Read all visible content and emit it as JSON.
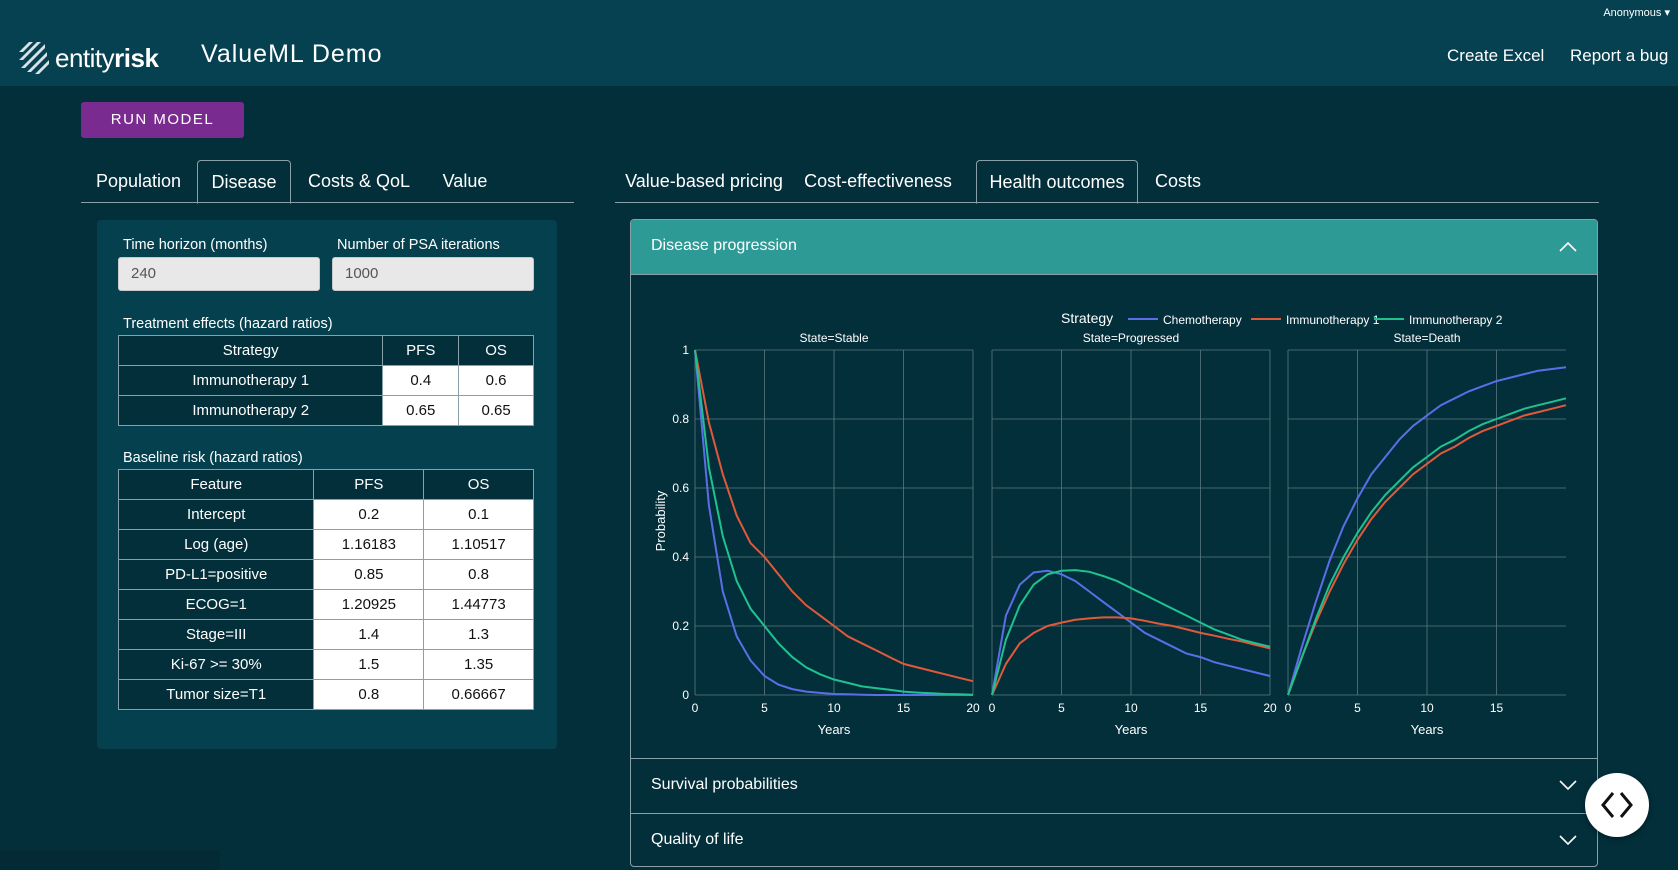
{
  "header": {
    "user": "Anonymous ▾",
    "logo_light": "entity",
    "logo_bold": "risk",
    "app_title": "ValueML Demo",
    "links": [
      "Create Excel",
      "Report a bug"
    ]
  },
  "run_button": "RUN MODEL",
  "left_tabs": [
    {
      "label": "Population",
      "active": false
    },
    {
      "label": "Disease",
      "active": true
    },
    {
      "label": "Costs & QoL",
      "active": false
    },
    {
      "label": "Value",
      "active": false
    }
  ],
  "right_tabs": [
    {
      "label": "Value-based pricing",
      "active": false
    },
    {
      "label": "Cost-effectiveness",
      "active": false
    },
    {
      "label": "Health outcomes",
      "active": true
    },
    {
      "label": "Costs",
      "active": false
    }
  ],
  "settings": {
    "time_horizon_label": "Time horizon (months)",
    "time_horizon_value": "240",
    "psa_label": "Number of PSA iterations",
    "psa_value": "1000"
  },
  "treatment_effects": {
    "title": "Treatment effects (hazard ratios)",
    "headers": [
      "Strategy",
      "PFS",
      "OS"
    ],
    "rows": [
      [
        "Immunotherapy 1",
        "0.4",
        "0.6"
      ],
      [
        "Immunotherapy 2",
        "0.65",
        "0.65"
      ]
    ]
  },
  "baseline_risk": {
    "title": "Baseline risk (hazard ratios)",
    "headers": [
      "Feature",
      "PFS",
      "OS"
    ],
    "rows": [
      [
        "Intercept",
        "0.2",
        "0.1"
      ],
      [
        "Log (age)",
        "1.16183",
        "1.10517"
      ],
      [
        "PD-L1=positive",
        "0.85",
        "0.8"
      ],
      [
        "ECOG=1",
        "1.20925",
        "1.44773"
      ],
      [
        "Stage=III",
        "1.4",
        "1.3"
      ],
      [
        "Ki-67 >= 30%",
        "1.5",
        "1.35"
      ],
      [
        "Tumor size=T1",
        "0.8",
        "0.66667"
      ]
    ]
  },
  "accordion": [
    {
      "title": "Disease progression",
      "open": true
    },
    {
      "title": "Survival probabilities",
      "open": false
    },
    {
      "title": "Quality of life",
      "open": false
    }
  ],
  "colors": {
    "chemotherapy": "#5b6ee8",
    "immunotherapy1": "#e05a3a",
    "immunotherapy2": "#1fc28f"
  },
  "chart_data": {
    "type": "line",
    "legend_title": "Strategy",
    "legend_position": "top-right",
    "ylabel": "Probability",
    "xlabel": "Years",
    "ylim": [
      0,
      1
    ],
    "yticks": [
      "0",
      "0.2",
      "0.4",
      "0.6",
      "0.8",
      "1"
    ],
    "grid": true,
    "x": [
      0,
      1,
      2,
      3,
      4,
      5,
      6,
      7,
      8,
      9,
      10,
      11,
      12,
      13,
      14,
      15,
      16,
      17,
      18,
      19,
      20
    ],
    "facets": [
      {
        "title": "State=Stable",
        "xticks": [
          "0",
          "5",
          "10",
          "15",
          "20"
        ],
        "series": [
          {
            "name": "Chemotherapy",
            "color_key": "chemotherapy",
            "values": [
              1.0,
              0.55,
              0.3,
              0.17,
              0.1,
              0.055,
              0.03,
              0.017,
              0.01,
              0.006,
              0.003,
              0.002,
              0.001,
              0.0,
              0.0,
              0.0,
              0.0,
              0.0,
              0.0,
              0.0,
              0.0
            ]
          },
          {
            "name": "Immunotherapy 1",
            "color_key": "immunotherapy1",
            "values": [
              1.0,
              0.79,
              0.64,
              0.52,
              0.44,
              0.4,
              0.35,
              0.3,
              0.26,
              0.23,
              0.2,
              0.17,
              0.15,
              0.13,
              0.11,
              0.09,
              0.08,
              0.07,
              0.06,
              0.05,
              0.04
            ]
          },
          {
            "name": "Immunotherapy 2",
            "color_key": "immunotherapy2",
            "values": [
              1.0,
              0.66,
              0.46,
              0.33,
              0.25,
              0.2,
              0.15,
              0.11,
              0.08,
              0.06,
              0.045,
              0.035,
              0.025,
              0.02,
              0.015,
              0.01,
              0.007,
              0.005,
              0.003,
              0.002,
              0.001
            ]
          }
        ]
      },
      {
        "title": "State=Progressed",
        "xticks": [
          "0",
          "5",
          "10",
          "15",
          "20"
        ],
        "series": [
          {
            "name": "Chemotherapy",
            "color_key": "chemotherapy",
            "values": [
              0.0,
              0.23,
              0.32,
              0.355,
              0.36,
              0.35,
              0.33,
              0.3,
              0.27,
              0.24,
              0.21,
              0.18,
              0.16,
              0.14,
              0.12,
              0.11,
              0.095,
              0.085,
              0.075,
              0.065,
              0.055
            ]
          },
          {
            "name": "Immunotherapy 1",
            "color_key": "immunotherapy1",
            "values": [
              0.0,
              0.09,
              0.15,
              0.18,
              0.2,
              0.21,
              0.218,
              0.222,
              0.225,
              0.225,
              0.222,
              0.215,
              0.207,
              0.2,
              0.19,
              0.18,
              0.172,
              0.163,
              0.155,
              0.145,
              0.135
            ]
          },
          {
            "name": "Immunotherapy 2",
            "color_key": "immunotherapy2",
            "values": [
              0.0,
              0.16,
              0.26,
              0.32,
              0.35,
              0.36,
              0.362,
              0.357,
              0.345,
              0.33,
              0.31,
              0.29,
              0.27,
              0.25,
              0.23,
              0.21,
              0.19,
              0.175,
              0.16,
              0.15,
              0.14
            ]
          }
        ]
      },
      {
        "title": "State=Death",
        "xticks": [
          "0",
          "5",
          "10",
          "15"
        ],
        "series": [
          {
            "name": "Chemotherapy",
            "color_key": "chemotherapy",
            "values": [
              0.0,
              0.14,
              0.27,
              0.39,
              0.49,
              0.57,
              0.64,
              0.69,
              0.74,
              0.78,
              0.81,
              0.84,
              0.86,
              0.88,
              0.895,
              0.91,
              0.92,
              0.93,
              0.94,
              0.945,
              0.95
            ]
          },
          {
            "name": "Immunotherapy 1",
            "color_key": "immunotherapy1",
            "values": [
              0.0,
              0.11,
              0.21,
              0.3,
              0.38,
              0.45,
              0.51,
              0.56,
              0.6,
              0.64,
              0.67,
              0.7,
              0.72,
              0.745,
              0.765,
              0.78,
              0.795,
              0.81,
              0.82,
              0.83,
              0.84
            ]
          },
          {
            "name": "Immunotherapy 2",
            "color_key": "immunotherapy2",
            "values": [
              0.0,
              0.11,
              0.22,
              0.32,
              0.4,
              0.47,
              0.53,
              0.58,
              0.62,
              0.66,
              0.69,
              0.72,
              0.74,
              0.765,
              0.785,
              0.8,
              0.815,
              0.83,
              0.84,
              0.85,
              0.86
            ]
          }
        ]
      }
    ]
  }
}
